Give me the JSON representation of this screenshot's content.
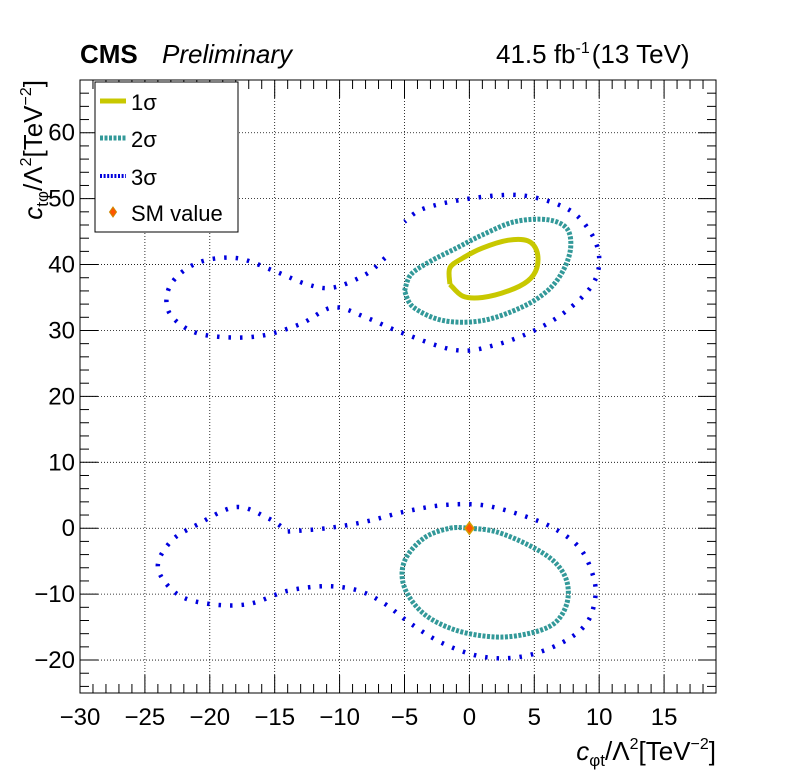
{
  "header": {
    "cms_label": "CMS",
    "preliminary_label": "Preliminary",
    "lumi_label": "41.5 fb",
    "lumi_sup": "-1",
    "energy_label": "(13 TeV)"
  },
  "axes": {
    "x_label_main": "c",
    "x_label_sub": "φt",
    "x_label_tail": "/Λ",
    "x_label_pow": "2",
    "x_label_unit": "[TeV",
    "x_label_unit_pow": "−2",
    "x_label_close": "]",
    "y_label_main": "c",
    "y_label_sub": "tφ",
    "y_label_tail": "/Λ",
    "y_label_pow": "2",
    "y_label_unit": "[TeV",
    "y_label_unit_pow": "−2",
    "y_label_close": "]"
  },
  "legend": {
    "items": [
      {
        "label": "1σ",
        "style": "solid",
        "color": "#c8c800"
      },
      {
        "label": "2σ",
        "style": "dashed",
        "color": "#339999"
      },
      {
        "label": "3σ",
        "style": "dotted",
        "color": "#0000dd"
      },
      {
        "label": "SM value",
        "style": "marker",
        "color": "#ff5500"
      }
    ]
  },
  "chart_data": {
    "type": "scatter",
    "title": "",
    "xlabel": "c_φt/Λ^2[TeV^-2]",
    "ylabel": "c_tφ/Λ^2[TeV^-2]",
    "xlim": [
      -30,
      19
    ],
    "ylim": [
      -25,
      68
    ],
    "xticks": [
      -30,
      -25,
      -20,
      -15,
      -10,
      -5,
      0,
      5,
      10,
      15
    ],
    "xtick_labels": [
      "−30",
      "−25",
      "−20",
      "−15",
      "−10",
      "−5",
      "0",
      "5",
      "10",
      "15"
    ],
    "yticks": [
      -20,
      -10,
      0,
      10,
      20,
      30,
      40,
      50,
      60
    ],
    "ytick_labels": [
      "−20",
      "−10",
      "0",
      "10",
      "20",
      "30",
      "40",
      "50",
      "60"
    ],
    "grid": true,
    "legend_position": "top-left",
    "series": [
      {
        "name": "1σ",
        "color": "#c8c800",
        "style": "solid",
        "contours": [
          [
            [
              -1.5,
              37
            ],
            [
              -1.5,
              39.5
            ],
            [
              -0.5,
              41
            ],
            [
              1,
              42.5
            ],
            [
              3,
              43.7
            ],
            [
              4.5,
              43.6
            ],
            [
              5.2,
              42
            ],
            [
              5.2,
              39.5
            ],
            [
              4.5,
              37.5
            ],
            [
              3,
              36
            ],
            [
              1,
              35
            ],
            [
              -0.5,
              35.2
            ],
            [
              -1.5,
              37
            ]
          ]
        ]
      },
      {
        "name": "2σ",
        "color": "#339999",
        "style": "dashed",
        "contours": [
          [
            [
              -5,
              36
            ],
            [
              -4.5,
              38.5
            ],
            [
              -3,
              40.5
            ],
            [
              -1,
              42.5
            ],
            [
              1,
              44.5
            ],
            [
              3.5,
              46.5
            ],
            [
              6,
              46.8
            ],
            [
              7.5,
              45.5
            ],
            [
              7.8,
              42.5
            ],
            [
              7.2,
              39
            ],
            [
              6,
              36
            ],
            [
              4,
              33.5
            ],
            [
              1,
              31.5
            ],
            [
              -2,
              31.5
            ],
            [
              -4.3,
              33.5
            ],
            [
              -5,
              36
            ]
          ],
          [
            [
              0,
              0
            ],
            [
              2,
              -0.5
            ],
            [
              4.5,
              -2.5
            ],
            [
              6.5,
              -5
            ],
            [
              7.5,
              -8
            ],
            [
              7.5,
              -11.5
            ],
            [
              6.5,
              -14.5
            ],
            [
              4.5,
              -16
            ],
            [
              2,
              -16.5
            ],
            [
              -1,
              -15.5
            ],
            [
              -3.5,
              -13
            ],
            [
              -5,
              -9
            ],
            [
              -5,
              -5
            ],
            [
              -3.5,
              -1.5
            ],
            [
              -1.5,
              0
            ],
            [
              0,
              0
            ]
          ]
        ]
      },
      {
        "name": "3σ",
        "color": "#0000dd",
        "style": "dotted",
        "contours": [
          [
            [
              -6.5,
              41
            ],
            [
              -8,
              38.5
            ],
            [
              -10.5,
              36.5
            ],
            [
              -12.5,
              37
            ],
            [
              -15,
              39
            ],
            [
              -18,
              41
            ],
            [
              -21,
              40.2
            ],
            [
              -23,
              37
            ],
            [
              -23.2,
              33
            ],
            [
              -21.5,
              30
            ],
            [
              -19,
              29
            ],
            [
              -16,
              29.2
            ],
            [
              -13,
              31
            ],
            [
              -10.5,
              33.5
            ],
            [
              -8,
              32
            ],
            [
              -5,
              29.5
            ],
            [
              -1,
              27
            ],
            [
              2,
              27.8
            ],
            [
              5,
              30
            ],
            [
              7.5,
              33
            ],
            [
              9.5,
              37
            ],
            [
              10,
              41
            ],
            [
              9.3,
              45
            ],
            [
              7.5,
              48.5
            ],
            [
              4,
              50.5
            ],
            [
              0,
              50
            ],
            [
              -3.5,
              48.5
            ],
            [
              -5,
              46.5
            ]
          ],
          [
            [
              -14,
              -0.5
            ],
            [
              -11,
              0
            ],
            [
              -8,
              1
            ],
            [
              -5,
              2.5
            ],
            [
              -2,
              3.5
            ],
            [
              1,
              3.5
            ],
            [
              4,
              2
            ],
            [
              6.5,
              0
            ],
            [
              8.5,
              -3
            ],
            [
              9.5,
              -7
            ],
            [
              9.7,
              -10.5
            ],
            [
              9,
              -14.5
            ],
            [
              7,
              -17.5
            ],
            [
              4,
              -19.5
            ],
            [
              1,
              -19.5
            ],
            [
              -2,
              -17.5
            ],
            [
              -4.5,
              -14.5
            ],
            [
              -6.5,
              -11.5
            ],
            [
              -8.5,
              -9.5
            ],
            [
              -11,
              -8.8
            ],
            [
              -14,
              -9.5
            ],
            [
              -17,
              -11.5
            ],
            [
              -20,
              -11.5
            ],
            [
              -22.5,
              -10
            ],
            [
              -24,
              -6
            ],
            [
              -23,
              -2
            ],
            [
              -21,
              0.5
            ],
            [
              -18,
              3.2
            ],
            [
              -15.5,
              1.5
            ],
            [
              -14,
              -0.5
            ]
          ]
        ]
      },
      {
        "name": "SM value",
        "color": "#ff5500",
        "style": "marker",
        "points": [
          [
            0,
            0
          ]
        ]
      }
    ]
  }
}
